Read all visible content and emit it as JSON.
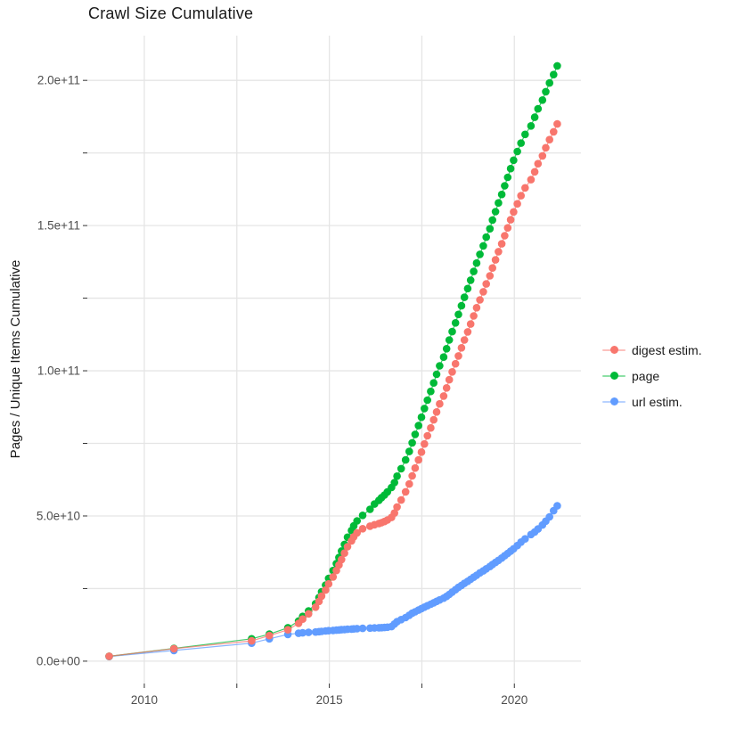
{
  "title": "Crawl Size Cumulative",
  "colors": {
    "digest": "#F8766D",
    "page": "#00BA38",
    "url": "#619CFF",
    "gridline": "#e5e5e5",
    "tick_mark": "#333333",
    "tick_label": "#4d4d4d",
    "title_text": "#1a1a1a",
    "background": "#ffffff"
  },
  "chart_data": {
    "type": "scatter",
    "title": "Crawl Size Cumulative",
    "xlabel": "",
    "ylabel": "Pages / Unique Items Cumulative",
    "legend_position": "right",
    "grid": true,
    "values_unit": "1e9 (billions of pages / unique items)",
    "xlim": [
      2008.46,
      2021.8
    ],
    "ylim_e9": [
      -7.7,
      215.4
    ],
    "x_ticks": [
      2010,
      2012.5,
      2015,
      2017.5,
      2020
    ],
    "x_tick_labels": [
      "2010",
      "",
      "2015",
      "",
      "2020"
    ],
    "y_ticks_e9": [
      0,
      25,
      50,
      75,
      100,
      125,
      150,
      175,
      200
    ],
    "y_tick_labels": [
      "0.0e+00",
      "",
      "5.0e+10",
      "",
      "1.0e+11",
      "",
      "1.5e+11",
      "",
      "2.0e+11"
    ],
    "x": [
      2009.05,
      2010.8,
      2012.9,
      2013.38,
      2013.88,
      2014.17,
      2014.28,
      2014.44,
      2014.63,
      2014.72,
      2014.79,
      2014.9,
      2014.98,
      2015.1,
      2015.19,
      2015.26,
      2015.33,
      2015.41,
      2015.49,
      2015.6,
      2015.66,
      2015.75,
      2015.9,
      2016.1,
      2016.22,
      2016.34,
      2016.41,
      2016.49,
      2016.57,
      2016.68,
      2016.76,
      2016.83,
      2016.94,
      2017.06,
      2017.16,
      2017.24,
      2017.32,
      2017.41,
      2017.49,
      2017.57,
      2017.65,
      2017.74,
      2017.82,
      2017.9,
      2017.98,
      2018.09,
      2018.17,
      2018.24,
      2018.32,
      2018.41,
      2018.49,
      2018.57,
      2018.65,
      2018.74,
      2018.82,
      2018.9,
      2018.98,
      2019.07,
      2019.16,
      2019.24,
      2019.34,
      2019.41,
      2019.49,
      2019.57,
      2019.66,
      2019.74,
      2019.82,
      2019.9,
      2019.98,
      2020.08,
      2020.18,
      2020.29,
      2020.45,
      2020.55,
      2020.64,
      2020.76,
      2020.85,
      2020.95,
      2021.06,
      2021.16
    ],
    "series": [
      {
        "name": "url estim.",
        "color": "#619CFF",
        "values_e9": [
          1.6,
          3.7,
          6.2,
          7.7,
          9.2,
          9.6,
          9.75,
          9.9,
          10.05,
          10.15,
          10.25,
          10.4,
          10.5,
          10.6,
          10.68,
          10.75,
          10.83,
          10.9,
          11.0,
          11.05,
          11.1,
          11.2,
          11.3,
          11.4,
          11.45,
          11.5,
          11.55,
          11.6,
          11.7,
          11.9,
          12.8,
          13.6,
          14.3,
          15.0,
          15.8,
          16.5,
          17.0,
          17.6,
          18.1,
          18.6,
          19.1,
          19.6,
          20.1,
          20.6,
          21.1,
          21.7,
          22.3,
          23.0,
          23.8,
          24.6,
          25.4,
          26.1,
          26.8,
          27.5,
          28.2,
          28.9,
          29.6,
          30.4,
          31.1,
          31.8,
          32.6,
          33.3,
          34.0,
          34.7,
          35.5,
          36.3,
          37.1,
          37.9,
          38.7,
          39.8,
          41.0,
          42.1,
          43.6,
          44.5,
          45.5,
          46.9,
          48.2,
          49.7,
          51.8,
          53.5
        ]
      },
      {
        "name": "page",
        "color": "#00BA38",
        "values_e9": [
          1.7,
          4.4,
          7.7,
          9.3,
          11.5,
          13.8,
          15.4,
          17.3,
          19.8,
          21.9,
          23.9,
          26.2,
          28.5,
          31.2,
          33.6,
          35.7,
          37.9,
          40.2,
          42.7,
          45.0,
          46.6,
          48.3,
          50.2,
          52.3,
          54.1,
          55.4,
          56.3,
          57.2,
          58.3,
          59.8,
          61.5,
          63.7,
          66.3,
          69.3,
          72.2,
          75.2,
          78.1,
          81.1,
          84.0,
          87.0,
          89.9,
          92.9,
          95.8,
          98.8,
          101.7,
          104.7,
          107.6,
          110.6,
          113.5,
          116.5,
          119.4,
          122.4,
          125.3,
          128.3,
          131.2,
          134.2,
          137.1,
          140.1,
          143.0,
          146.0,
          148.9,
          151.9,
          154.8,
          157.8,
          160.7,
          163.7,
          166.6,
          169.6,
          172.5,
          175.5,
          178.4,
          181.4,
          184.3,
          187.3,
          190.2,
          193.2,
          196.1,
          199.1,
          202.0,
          205.0
        ]
      },
      {
        "name": "digest estim.",
        "color": "#F8766D",
        "values_e9": [
          1.7,
          4.3,
          7.0,
          8.8,
          10.8,
          13.0,
          14.5,
          16.3,
          18.6,
          20.6,
          22.4,
          24.5,
          26.6,
          29.0,
          31.2,
          33.1,
          35.0,
          37.2,
          39.4,
          41.4,
          42.8,
          44.2,
          45.6,
          46.5,
          47.0,
          47.4,
          47.7,
          48.1,
          48.6,
          49.5,
          51.0,
          53.1,
          55.5,
          58.3,
          61.0,
          63.8,
          66.5,
          69.3,
          72.0,
          74.8,
          77.6,
          80.3,
          83.1,
          85.8,
          88.6,
          91.3,
          94.1,
          96.9,
          99.6,
          102.4,
          105.1,
          107.9,
          110.6,
          113.4,
          116.1,
          118.9,
          121.7,
          124.4,
          127.2,
          129.9,
          132.7,
          135.4,
          138.2,
          141.0,
          143.7,
          146.5,
          149.2,
          152.0,
          154.7,
          157.5,
          160.3,
          163.0,
          165.8,
          168.5,
          171.3,
          174.0,
          176.8,
          179.6,
          182.3,
          185.0
        ]
      }
    ]
  },
  "legend": {
    "items": [
      {
        "label": "digest estim.",
        "color": "#F8766D"
      },
      {
        "label": "page",
        "color": "#00BA38"
      },
      {
        "label": "url estim.",
        "color": "#619CFF"
      }
    ]
  }
}
